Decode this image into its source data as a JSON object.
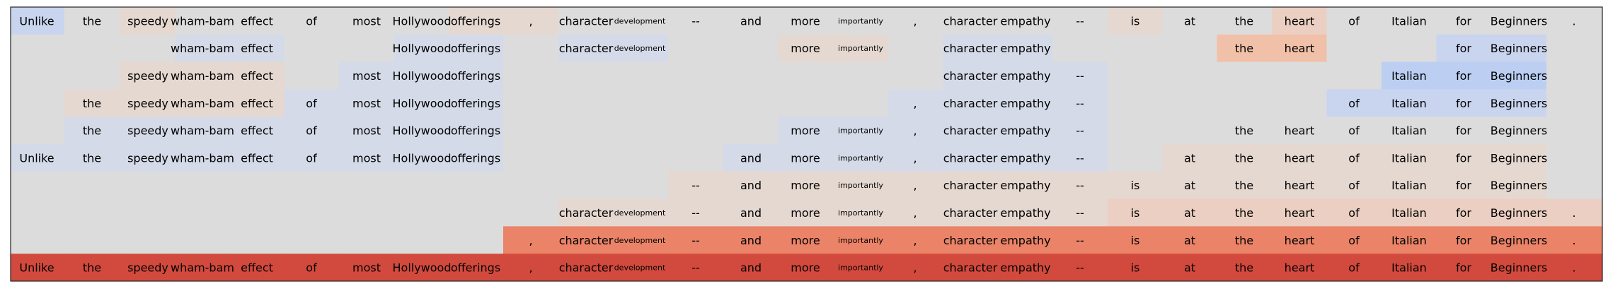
{
  "chart_data": {
    "type": "heatmap",
    "title": "",
    "xlabel": "",
    "ylabel": "",
    "grid": false,
    "legend": "none",
    "small_tokens": [
      "development",
      "importantly"
    ],
    "colors": {
      "empty": "#dcdcdc",
      "blue_weak": "#d4dae8",
      "blue_light": "#c9d5ef",
      "blue_mid": "#bccff3",
      "orange_weak": "#e5d8d1",
      "orange_light": "#ebcfc2",
      "orange_mid": "#f1c0a8",
      "red_strong": "#ea8367",
      "red_deep": "#d24a3d",
      "border": "#222222"
    },
    "tokens": [
      "Unlike",
      "the",
      "speedy",
      "wham-bam",
      "effect",
      "of",
      "most",
      "Hollywood",
      "offerings",
      ",",
      "character",
      "development",
      "--",
      "and",
      "more",
      "importantly",
      ",",
      "character",
      "empathy",
      "--",
      "is",
      "at",
      "the",
      "heart",
      "of",
      "Italian",
      "for",
      "Beginners",
      "."
    ],
    "rows": [
      {
        "show": [
          1,
          1,
          1,
          1,
          1,
          1,
          1,
          1,
          1,
          1,
          1,
          1,
          1,
          1,
          1,
          1,
          1,
          1,
          1,
          1,
          1,
          1,
          1,
          1,
          1,
          1,
          1,
          1,
          1
        ],
        "fill": [
          "blue_light",
          "empty",
          "orange_weak",
          "empty",
          "empty",
          "empty",
          "empty",
          "empty",
          "orange_weak",
          "orange_weak",
          "empty",
          "empty",
          "empty",
          "empty",
          "empty",
          "empty",
          "empty",
          "empty",
          "empty",
          "empty",
          "orange_weak",
          "empty",
          "empty",
          "orange_light",
          "empty",
          "empty",
          "empty",
          "empty",
          "empty"
        ]
      },
      {
        "show": [
          0,
          0,
          0,
          1,
          1,
          0,
          0,
          1,
          1,
          0,
          1,
          1,
          0,
          0,
          1,
          1,
          0,
          1,
          1,
          0,
          0,
          0,
          1,
          1,
          0,
          0,
          1,
          1,
          0
        ],
        "fill": [
          "empty",
          "empty",
          "empty",
          "blue_weak",
          "blue_weak",
          "empty",
          "empty",
          "blue_weak",
          "blue_weak",
          "empty",
          "blue_weak",
          "blue_weak",
          "empty",
          "empty",
          "orange_weak",
          "orange_weak",
          "empty",
          "blue_weak",
          "blue_weak",
          "empty",
          "empty",
          "empty",
          "orange_mid",
          "orange_mid",
          "empty",
          "empty",
          "blue_light",
          "blue_light",
          "empty"
        ]
      },
      {
        "show": [
          0,
          0,
          1,
          1,
          1,
          0,
          1,
          1,
          1,
          0,
          0,
          0,
          0,
          0,
          0,
          0,
          0,
          1,
          1,
          1,
          0,
          0,
          0,
          0,
          0,
          1,
          1,
          1,
          0
        ],
        "fill": [
          "empty",
          "empty",
          "orange_weak",
          "orange_weak",
          "orange_weak",
          "empty",
          "blue_weak",
          "blue_weak",
          "blue_weak",
          "empty",
          "empty",
          "empty",
          "empty",
          "empty",
          "empty",
          "empty",
          "empty",
          "blue_weak",
          "blue_weak",
          "blue_weak",
          "empty",
          "empty",
          "empty",
          "empty",
          "empty",
          "blue_mid",
          "blue_mid",
          "blue_mid",
          "empty"
        ]
      },
      {
        "show": [
          0,
          1,
          1,
          1,
          1,
          1,
          1,
          1,
          1,
          0,
          0,
          0,
          0,
          0,
          0,
          0,
          1,
          1,
          1,
          1,
          0,
          0,
          0,
          0,
          1,
          1,
          1,
          1,
          0
        ],
        "fill": [
          "empty",
          "orange_weak",
          "orange_weak",
          "orange_weak",
          "orange_weak",
          "blue_weak",
          "blue_weak",
          "blue_weak",
          "blue_weak",
          "empty",
          "empty",
          "empty",
          "empty",
          "empty",
          "empty",
          "empty",
          "blue_weak",
          "blue_weak",
          "blue_weak",
          "blue_weak",
          "empty",
          "empty",
          "empty",
          "empty",
          "blue_light",
          "blue_light",
          "blue_light",
          "blue_light",
          "empty"
        ]
      },
      {
        "show": [
          0,
          1,
          1,
          1,
          1,
          1,
          1,
          1,
          1,
          0,
          0,
          0,
          0,
          0,
          1,
          1,
          1,
          1,
          1,
          1,
          0,
          0,
          1,
          1,
          1,
          1,
          1,
          1,
          0
        ],
        "fill": [
          "empty",
          "blue_weak",
          "blue_weak",
          "blue_weak",
          "blue_weak",
          "blue_weak",
          "blue_weak",
          "blue_weak",
          "blue_weak",
          "empty",
          "empty",
          "empty",
          "empty",
          "empty",
          "blue_weak",
          "blue_weak",
          "blue_weak",
          "blue_weak",
          "blue_weak",
          "blue_weak",
          "empty",
          "empty",
          "empty",
          "empty",
          "empty",
          "empty",
          "empty",
          "empty",
          "empty"
        ]
      },
      {
        "show": [
          1,
          1,
          1,
          1,
          1,
          1,
          1,
          1,
          1,
          0,
          0,
          0,
          0,
          1,
          1,
          1,
          1,
          1,
          1,
          1,
          0,
          1,
          1,
          1,
          1,
          1,
          1,
          1,
          0
        ],
        "fill": [
          "blue_weak",
          "blue_weak",
          "blue_weak",
          "blue_weak",
          "blue_weak",
          "blue_weak",
          "blue_weak",
          "blue_weak",
          "blue_weak",
          "empty",
          "empty",
          "empty",
          "empty",
          "blue_weak",
          "blue_weak",
          "blue_weak",
          "blue_weak",
          "blue_weak",
          "blue_weak",
          "blue_weak",
          "empty",
          "orange_weak",
          "orange_weak",
          "orange_weak",
          "orange_weak",
          "orange_weak",
          "orange_weak",
          "orange_weak",
          "empty"
        ]
      },
      {
        "show": [
          0,
          0,
          0,
          0,
          0,
          0,
          0,
          0,
          0,
          0,
          0,
          0,
          1,
          1,
          1,
          1,
          1,
          1,
          1,
          1,
          1,
          1,
          1,
          1,
          1,
          1,
          1,
          1,
          0
        ],
        "fill": [
          "empty",
          "empty",
          "empty",
          "empty",
          "empty",
          "empty",
          "empty",
          "empty",
          "empty",
          "empty",
          "empty",
          "empty",
          "orange_weak",
          "orange_weak",
          "orange_weak",
          "orange_weak",
          "orange_weak",
          "orange_weak",
          "orange_weak",
          "orange_weak",
          "orange_weak",
          "orange_weak",
          "orange_weak",
          "orange_weak",
          "orange_weak",
          "orange_weak",
          "orange_weak",
          "orange_weak",
          "empty"
        ]
      },
      {
        "show": [
          0,
          0,
          0,
          0,
          0,
          0,
          0,
          0,
          0,
          0,
          1,
          1,
          1,
          1,
          1,
          1,
          1,
          1,
          1,
          1,
          1,
          1,
          1,
          1,
          1,
          1,
          1,
          1,
          1
        ],
        "fill": [
          "empty",
          "empty",
          "empty",
          "empty",
          "empty",
          "empty",
          "empty",
          "empty",
          "empty",
          "empty",
          "orange_weak",
          "orange_weak",
          "orange_weak",
          "orange_weak",
          "orange_weak",
          "orange_weak",
          "orange_weak",
          "orange_weak",
          "orange_weak",
          "orange_weak",
          "orange_light",
          "orange_light",
          "orange_light",
          "orange_light",
          "orange_light",
          "orange_light",
          "orange_light",
          "orange_light",
          "orange_light"
        ]
      },
      {
        "show": [
          0,
          0,
          0,
          0,
          0,
          0,
          0,
          0,
          0,
          1,
          1,
          1,
          1,
          1,
          1,
          1,
          1,
          1,
          1,
          1,
          1,
          1,
          1,
          1,
          1,
          1,
          1,
          1,
          1
        ],
        "fill": [
          "empty",
          "empty",
          "empty",
          "empty",
          "empty",
          "empty",
          "empty",
          "empty",
          "empty",
          "red_strong",
          "red_strong",
          "red_strong",
          "red_strong",
          "red_strong",
          "red_strong",
          "red_strong",
          "red_strong",
          "red_strong",
          "red_strong",
          "red_strong",
          "red_strong",
          "red_strong",
          "red_strong",
          "red_strong",
          "red_strong",
          "red_strong",
          "red_strong",
          "red_strong",
          "red_strong"
        ]
      },
      {
        "show": [
          1,
          1,
          1,
          1,
          1,
          1,
          1,
          1,
          1,
          1,
          1,
          1,
          1,
          1,
          1,
          1,
          1,
          1,
          1,
          1,
          1,
          1,
          1,
          1,
          1,
          1,
          1,
          1,
          1
        ],
        "fill": [
          "red_deep",
          "red_deep",
          "red_deep",
          "red_deep",
          "red_deep",
          "red_deep",
          "red_deep",
          "red_deep",
          "red_deep",
          "red_deep",
          "red_deep",
          "red_deep",
          "red_deep",
          "red_deep",
          "red_deep",
          "red_deep",
          "red_deep",
          "red_deep",
          "red_deep",
          "red_deep",
          "red_deep",
          "red_deep",
          "red_deep",
          "red_deep",
          "red_deep",
          "red_deep",
          "red_deep",
          "red_deep",
          "red_deep"
        ]
      }
    ]
  }
}
